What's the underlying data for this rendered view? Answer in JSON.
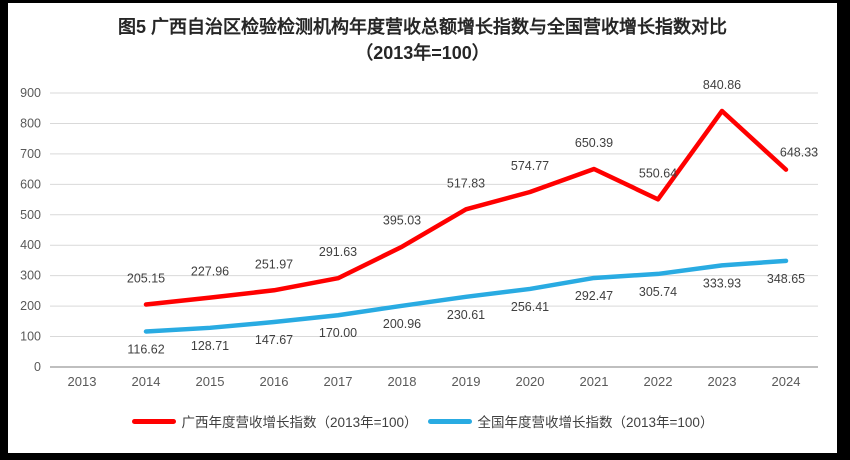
{
  "figure": {
    "title": "图5  广西自治区检验检测机构年度营收总额增长指数与全国营收增长指数对比（2013年=100）"
  },
  "chart_data": {
    "type": "line",
    "title": "图5  广西自治区检验检测机构年度营收总额增长指数与全国营收增长指数对比（2013年=100）",
    "categories": [
      "2013",
      "2014",
      "2015",
      "2016",
      "2017",
      "2018",
      "2019",
      "2020",
      "2021",
      "2022",
      "2023",
      "2024"
    ],
    "series": [
      {
        "key": "guangxi",
        "name": "广西年度营收增长指数（2013年=100）",
        "color": "#FF0000",
        "values": [
          null,
          205.15,
          227.96,
          251.97,
          291.63,
          395.03,
          517.83,
          574.77,
          650.39,
          550.64,
          840.86,
          648.33
        ]
      },
      {
        "key": "national",
        "name": "全国年度营收增长指数（2013年=100）",
        "color": "#29ABE2",
        "values": [
          null,
          116.62,
          128.71,
          147.67,
          170.0,
          200.96,
          230.61,
          256.41,
          292.47,
          305.74,
          333.93,
          348.65
        ]
      }
    ],
    "xlabel": "",
    "ylabel": "",
    "ylim": [
      0,
      900
    ],
    "yticks": [
      0,
      100,
      200,
      300,
      400,
      500,
      600,
      700,
      800,
      900
    ],
    "grid": true,
    "gridline_color": "#D9D9D9",
    "axis_line_color": "#BFBFBF",
    "tick_label_color": "#595959",
    "data_label_color": "#404040",
    "label_decimals": 2,
    "legend_position": "bottom"
  }
}
